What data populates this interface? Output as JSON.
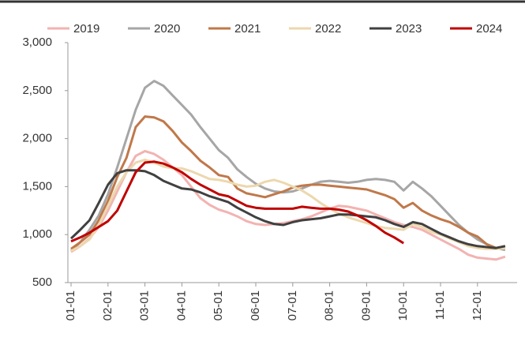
{
  "chart_data": {
    "type": "line",
    "categories": [
      "01-01",
      null,
      null,
      null,
      "02-01",
      null,
      null,
      null,
      "03-01",
      null,
      null,
      null,
      "04-01",
      null,
      null,
      null,
      "05-01",
      null,
      null,
      null,
      "06-01",
      null,
      null,
      null,
      "07-01",
      null,
      null,
      null,
      "08-01",
      null,
      null,
      null,
      "09-01",
      null,
      null,
      null,
      "10-01",
      null,
      null,
      null,
      "11-01",
      null,
      null,
      null,
      "12-01",
      null,
      null,
      null
    ],
    "ylim": [
      500,
      3000
    ],
    "yticks": [
      500,
      {
        "value": 1000,
        "label": "1,000"
      },
      {
        "value": 1500,
        "label": "1,500"
      },
      {
        "value": 2000,
        "label": "2,000"
      },
      {
        "value": 2500,
        "label": "2,500"
      },
      {
        "value": 3000,
        "label": "3,000"
      }
    ],
    "grid": false,
    "legend": "top",
    "series": [
      {
        "name": "2019",
        "color": "#f2b3b1",
        "values": [
          820,
          880,
          960,
          1080,
          1250,
          1450,
          1650,
          1820,
          1870,
          1840,
          1780,
          1700,
          1620,
          1500,
          1380,
          1310,
          1260,
          1230,
          1190,
          1140,
          1110,
          1100,
          1110,
          1120,
          1140,
          1160,
          1190,
          1230,
          1270,
          1300,
          1290,
          1270,
          1250,
          1210,
          1170,
          1130,
          1100,
          1080,
          1050,
          1000,
          950,
          900,
          850,
          790,
          760,
          750,
          740,
          770
        ]
      },
      {
        "name": "2020",
        "color": "#a6a6a6",
        "values": [
          830,
          920,
          1050,
          1200,
          1420,
          1700,
          2000,
          2300,
          2530,
          2600,
          2550,
          2450,
          2350,
          2250,
          2120,
          2000,
          1880,
          1800,
          1680,
          1600,
          1530,
          1480,
          1450,
          1440,
          1450,
          1480,
          1520,
          1550,
          1560,
          1550,
          1540,
          1550,
          1570,
          1580,
          1570,
          1550,
          1460,
          1550,
          1480,
          1400,
          1300,
          1200,
          1100,
          1020,
          950,
          900,
          860,
          840
        ]
      },
      {
        "name": "2021",
        "color": "#c0784a",
        "values": [
          850,
          920,
          1000,
          1150,
          1350,
          1600,
          1800,
          2120,
          2230,
          2220,
          2180,
          2080,
          1960,
          1870,
          1770,
          1700,
          1620,
          1600,
          1480,
          1430,
          1410,
          1390,
          1420,
          1450,
          1490,
          1510,
          1520,
          1520,
          1510,
          1500,
          1490,
          1480,
          1470,
          1440,
          1410,
          1370,
          1280,
          1330,
          1250,
          1200,
          1160,
          1130,
          1080,
          1020,
          980,
          900,
          860,
          880
        ]
      },
      {
        "name": "2022",
        "color": "#ecd8ae",
        "values": [
          830,
          880,
          950,
          1100,
          1300,
          1500,
          1650,
          1750,
          1780,
          1750,
          1710,
          1690,
          1690,
          1660,
          1620,
          1580,
          1570,
          1550,
          1520,
          1500,
          1510,
          1550,
          1570,
          1540,
          1500,
          1460,
          1400,
          1330,
          1270,
          1220,
          1180,
          1150,
          1120,
          1090,
          1070,
          1060,
          1050,
          1110,
          1080,
          1030,
          1000,
          960,
          920,
          880,
          860,
          850,
          850,
          860
        ]
      },
      {
        "name": "2023",
        "color": "#404040",
        "values": [
          960,
          1050,
          1150,
          1330,
          1520,
          1640,
          1670,
          1670,
          1660,
          1620,
          1560,
          1520,
          1480,
          1470,
          1440,
          1400,
          1370,
          1340,
          1280,
          1230,
          1180,
          1140,
          1110,
          1100,
          1130,
          1150,
          1160,
          1170,
          1190,
          1210,
          1210,
          1200,
          1190,
          1180,
          1150,
          1110,
          1080,
          1130,
          1110,
          1060,
          1010,
          970,
          930,
          900,
          880,
          870,
          860,
          880
        ]
      },
      {
        "name": "2024",
        "color": "#c00000",
        "values": [
          930,
          970,
          1020,
          1080,
          1140,
          1250,
          1450,
          1650,
          1750,
          1760,
          1740,
          1700,
          1650,
          1580,
          1520,
          1470,
          1420,
          1400,
          1350,
          1300,
          1280,
          1270,
          1270,
          1270,
          1270,
          1290,
          1280,
          1270,
          1270,
          1260,
          1240,
          1200,
          1150,
          1090,
          1020,
          970,
          910,
          null,
          null,
          null,
          null,
          null,
          null,
          null,
          null,
          null,
          null,
          null
        ]
      }
    ]
  }
}
